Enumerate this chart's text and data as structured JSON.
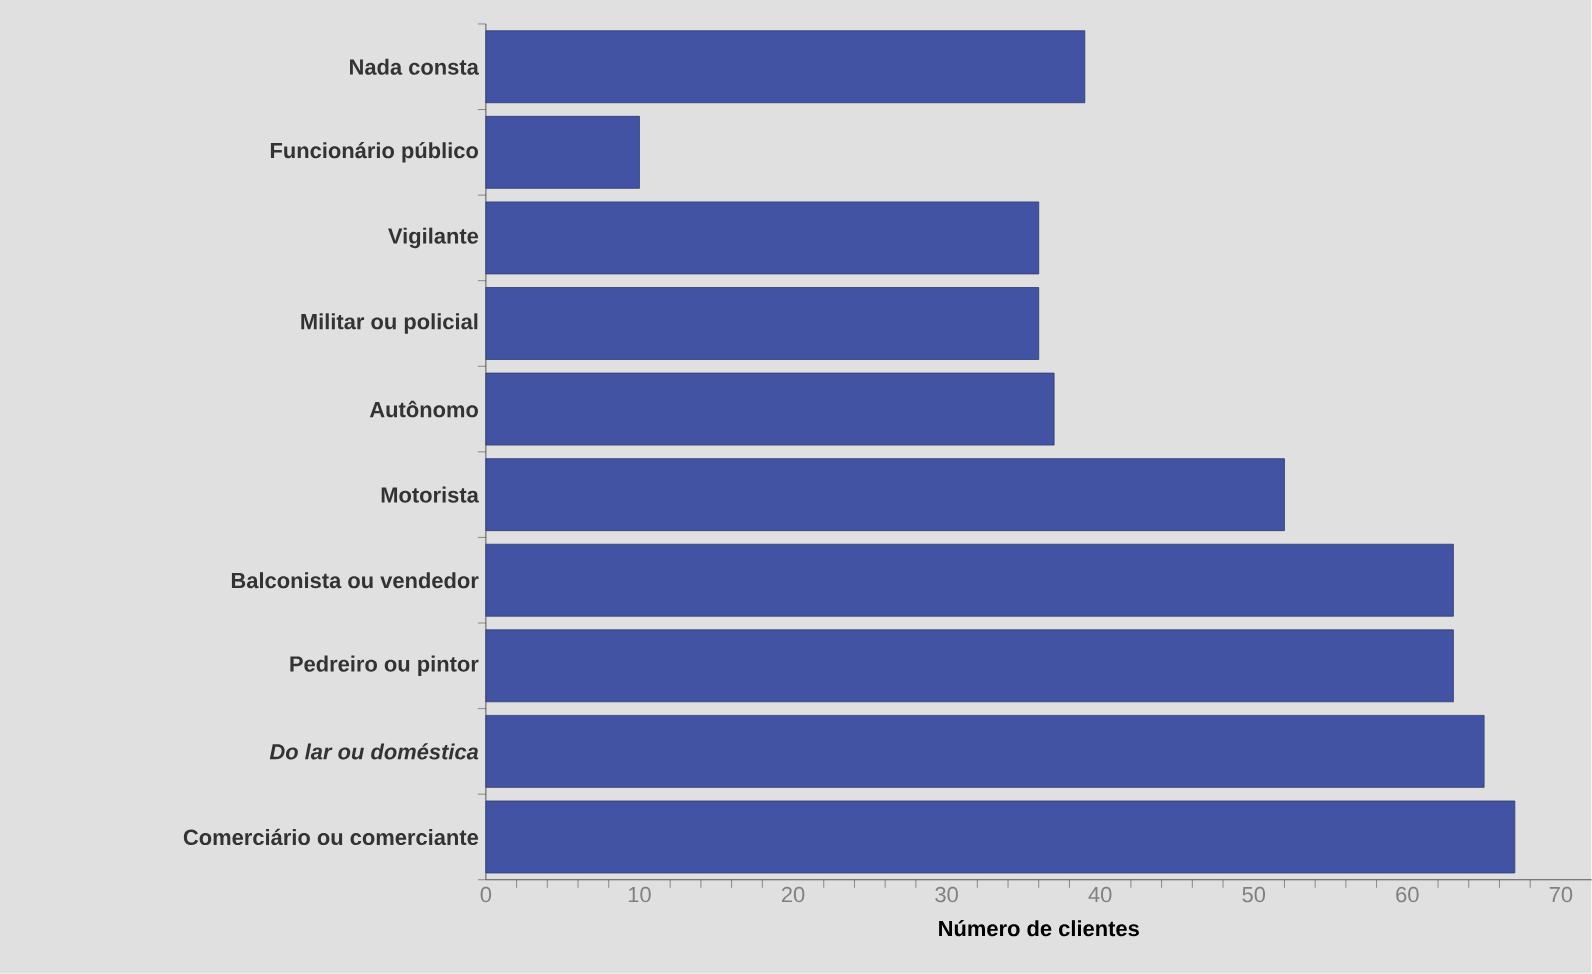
{
  "chart_data": {
    "type": "bar",
    "orientation": "horizontal",
    "xlabel": "Número de clientes",
    "categories": [
      "Nada consta",
      "Funcionário público",
      "Vigilante",
      "Militar ou policial",
      "Autônomo",
      "Motorista",
      "Balconista ou vendedor",
      "Pedreiro ou pintor",
      "*Do lar ou doméstica*",
      "Comerciário ou comerciante"
    ],
    "values": [
      39,
      10,
      36,
      36,
      37,
      52,
      63,
      63,
      65,
      67
    ],
    "color": "#4353a3",
    "xlim": [
      0,
      72
    ],
    "xticks": [
      0,
      10,
      20,
      30,
      40,
      50,
      60,
      70
    ]
  }
}
